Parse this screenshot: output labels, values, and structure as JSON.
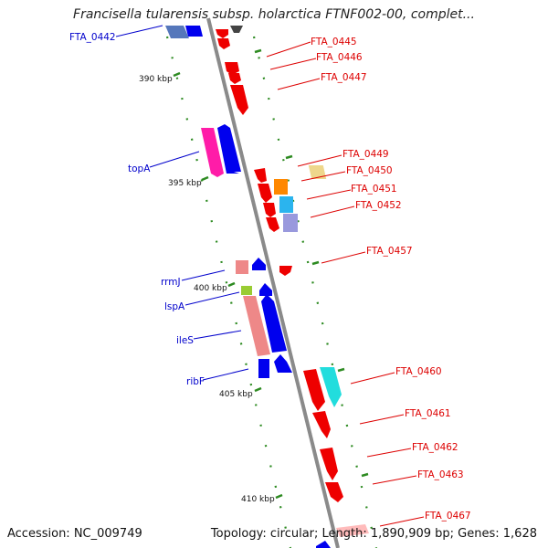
{
  "title": "Francisella tularensis subsp. holarctica FTNF002-00, complet...",
  "accession_text": "Accession: NC_009749",
  "summary_text": "Topology: circular; Length: 1,890,909 bp; Genes: 1,628",
  "colors": {
    "backbone": "#8a8a8a",
    "tick": "#2e8b22",
    "plus_strand_label": "#0000cc",
    "minus_strand_label": "#dd0000"
  },
  "ruler": [
    {
      "label": "390 kbp",
      "kbp": 390
    },
    {
      "label": "395 kbp",
      "kbp": 395
    },
    {
      "label": "400 kbp",
      "kbp": 400
    },
    {
      "label": "405 kbp",
      "kbp": 405
    },
    {
      "label": "410 kbp",
      "kbp": 410
    }
  ],
  "gene_labels": [
    {
      "name": "FTA_0442",
      "side": "left"
    },
    {
      "name": "topA",
      "side": "left"
    },
    {
      "name": "rrmJ",
      "side": "left"
    },
    {
      "name": "lspA",
      "side": "left"
    },
    {
      "name": "ileS",
      "side": "left"
    },
    {
      "name": "ribF",
      "side": "left"
    },
    {
      "name": "FTA_0445",
      "side": "right"
    },
    {
      "name": "FTA_0446",
      "side": "right"
    },
    {
      "name": "FTA_0447",
      "side": "right"
    },
    {
      "name": "FTA_0449",
      "side": "right"
    },
    {
      "name": "FTA_0450",
      "side": "right"
    },
    {
      "name": "FTA_0451",
      "side": "right"
    },
    {
      "name": "FTA_0452",
      "side": "right"
    },
    {
      "name": "FTA_0457",
      "side": "right"
    },
    {
      "name": "FTA_0460",
      "side": "right"
    },
    {
      "name": "FTA_0461",
      "side": "right"
    },
    {
      "name": "FTA_0462",
      "side": "right"
    },
    {
      "name": "FTA_0463",
      "side": "right"
    },
    {
      "name": "FTA_0467",
      "side": "right"
    }
  ]
}
